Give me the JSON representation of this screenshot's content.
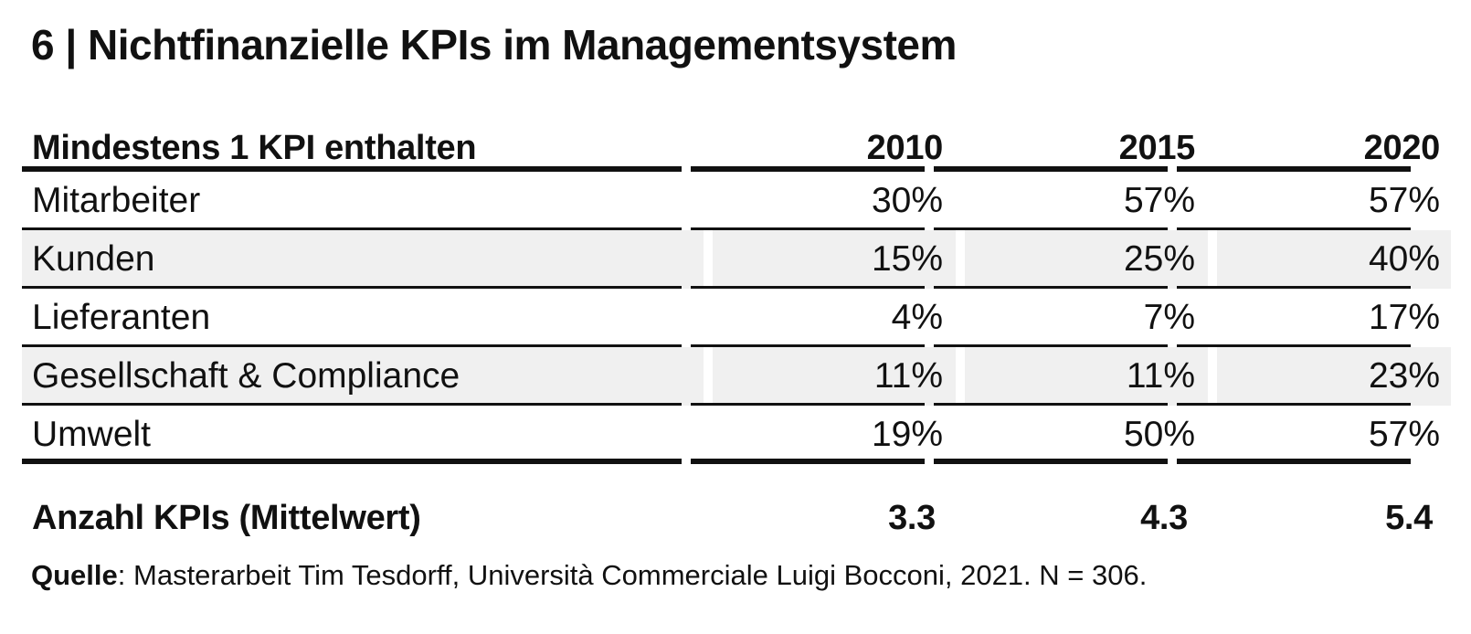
{
  "title": "6 | Nichtfinanzielle KPIs im Managementsystem",
  "table": {
    "header": {
      "label": "Mindestens 1 KPI enthalten",
      "years": [
        "2010",
        "2015",
        "2020"
      ]
    },
    "rows": [
      {
        "label": "Mitarbeiter",
        "values": [
          "30%",
          "57%",
          "57%"
        ]
      },
      {
        "label": "Kunden",
        "values": [
          "15%",
          "25%",
          "40%"
        ]
      },
      {
        "label": "Lieferanten",
        "values": [
          "4%",
          "7%",
          "17%"
        ]
      },
      {
        "label": "Gesellschaft & Compliance",
        "values": [
          "11%",
          "11%",
          "23%"
        ]
      },
      {
        "label": "Umwelt",
        "values": [
          "19%",
          "50%",
          "57%"
        ]
      }
    ],
    "total": {
      "label": "Anzahl KPIs (Mittelwert)",
      "values": [
        "3.3",
        "4.3",
        "5.4"
      ]
    }
  },
  "source": {
    "label": "Quelle",
    "separator": ":",
    "text": " Masterarbeit Tim Tesdorff, Università Commerciale Luigi Bocconi, 2021. N = 306."
  },
  "colors": {
    "text": "#111111",
    "row_shade": "#f0f0f0",
    "rule": "#111111"
  }
}
